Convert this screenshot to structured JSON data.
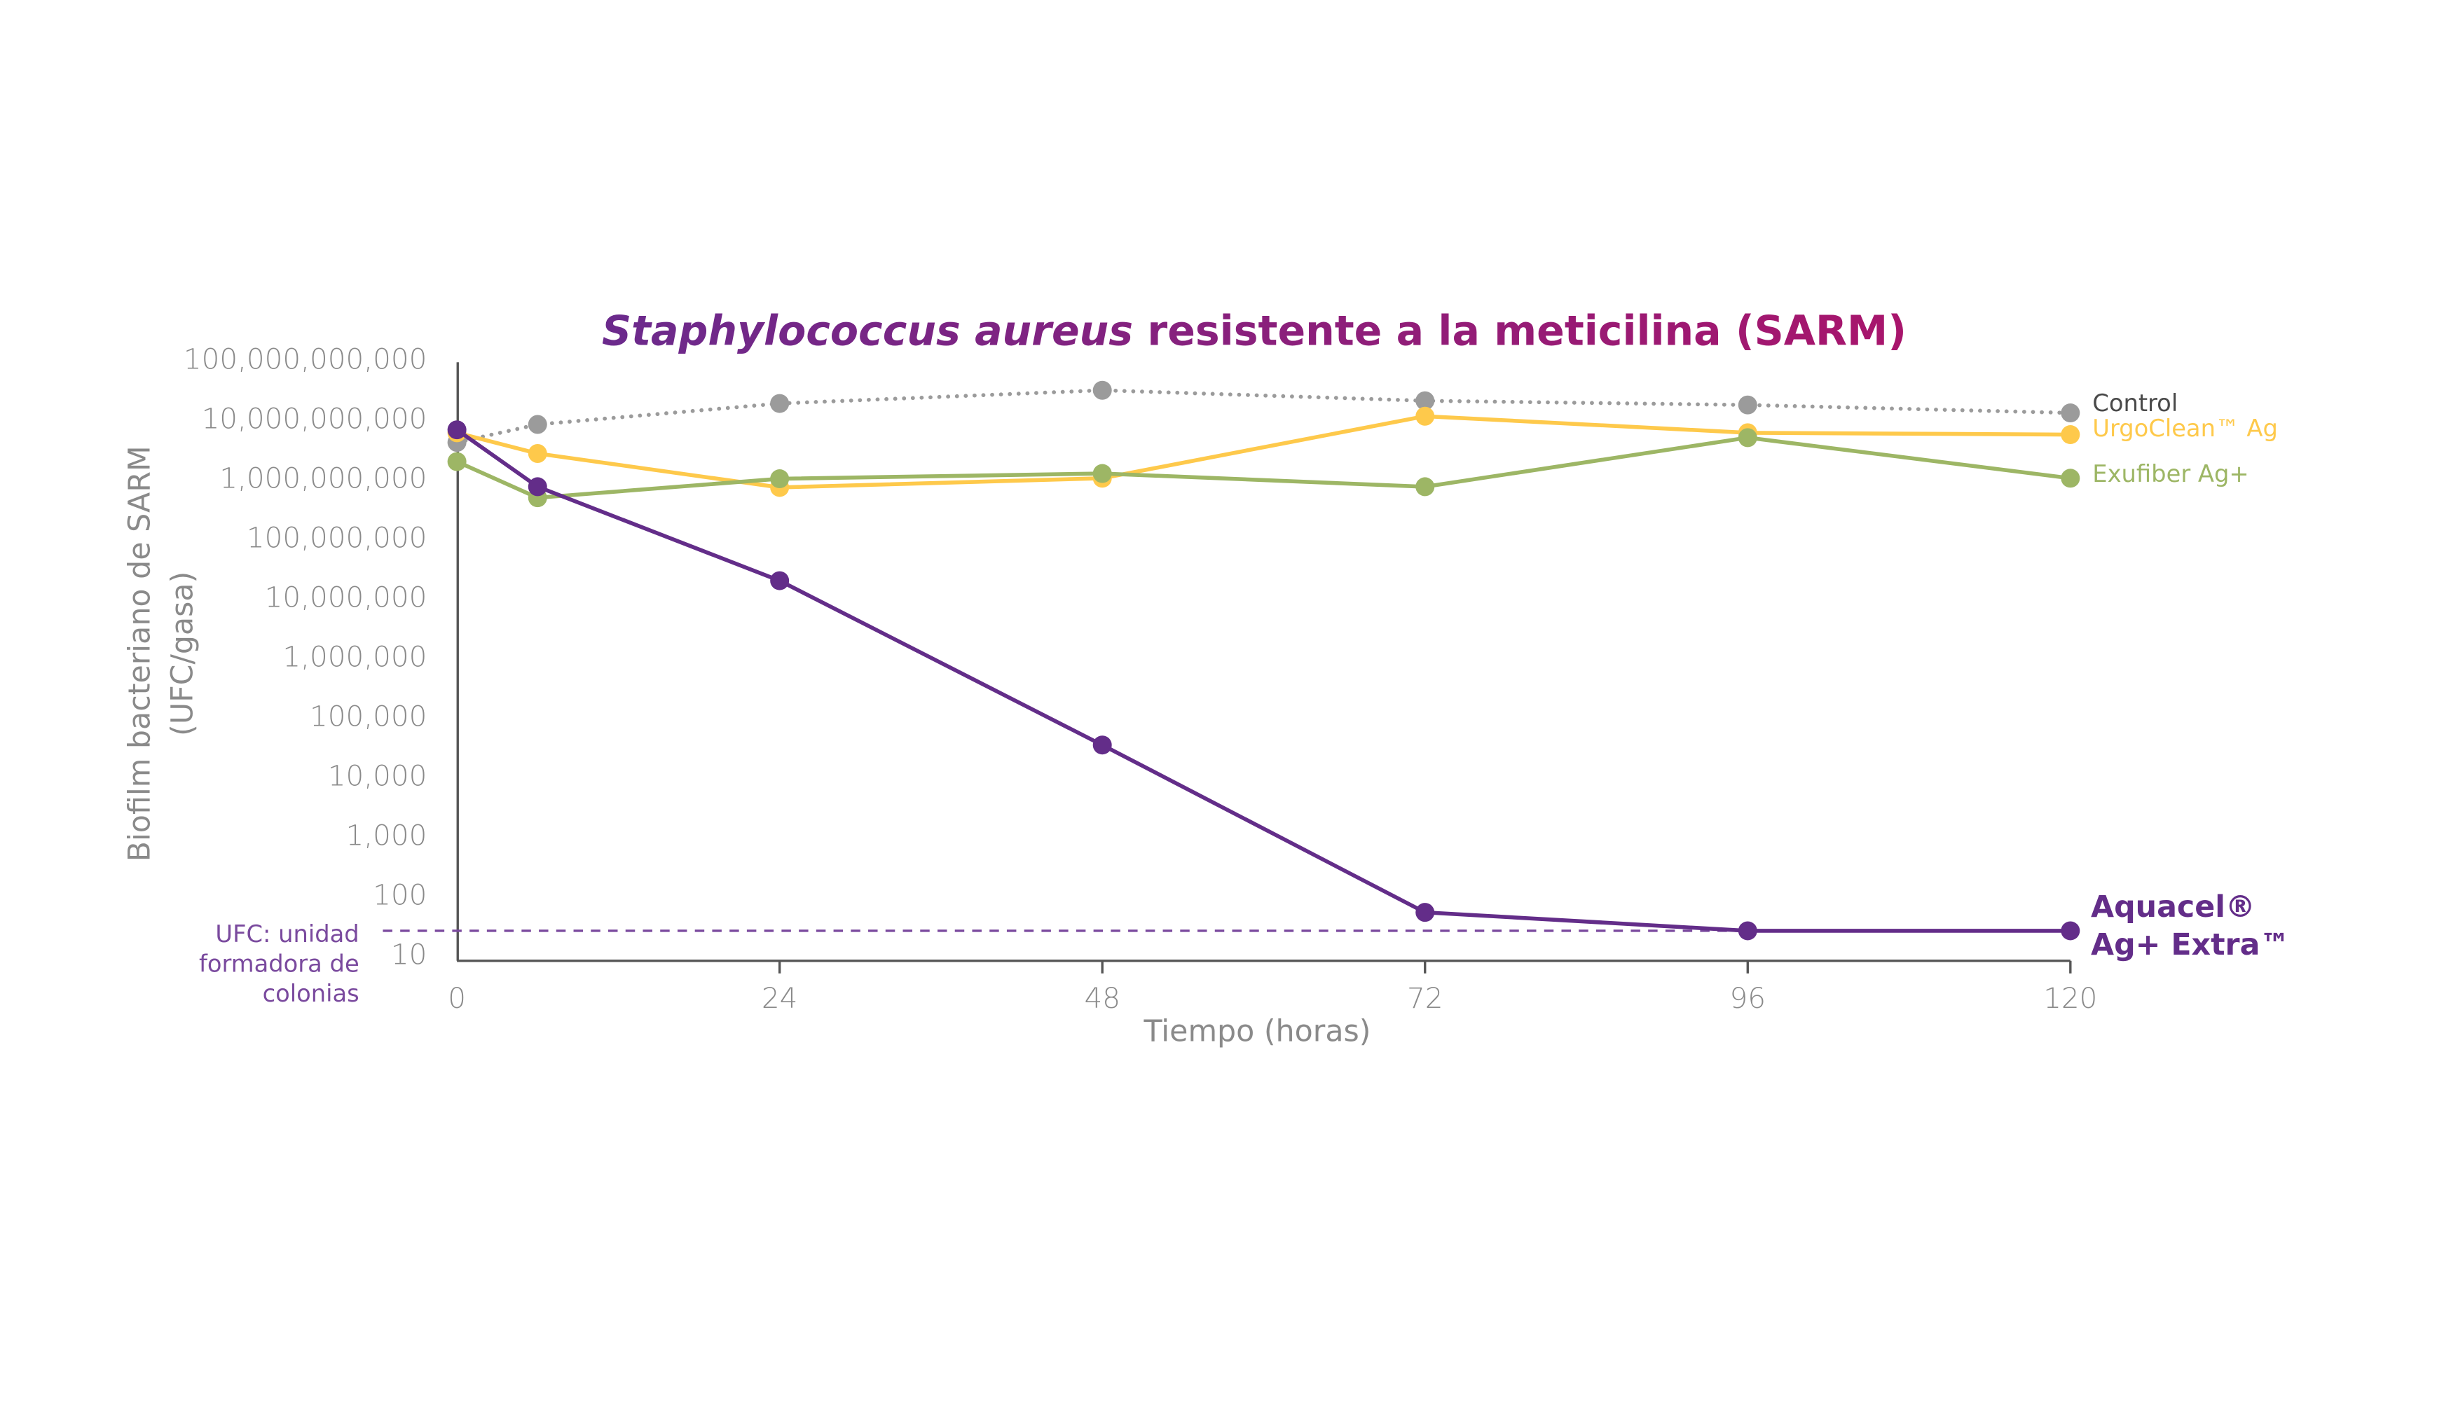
{
  "chart_data": {
    "type": "line",
    "title_italic": "Staphylococcus aureus",
    "title_rest": " resistente a la meticilina (SARM)",
    "xlabel": "Tiempo (horas)",
    "ylabel_line1": "Biofilm bacteriano de SARM",
    "ylabel_line2": "(UFC/gasa)",
    "yscale": "log",
    "ylim": [
      10,
      100000000000
    ],
    "xlim": [
      0,
      120
    ],
    "x_ticks": [
      "0",
      "24",
      "48",
      "72",
      "96",
      "120"
    ],
    "y_ticks": [
      "100,000,000,000",
      "10,000,000,000",
      "1,000,000,000",
      "100,000,000",
      "10,000,000",
      "1,000,000",
      "100,000",
      "10,000",
      "1,000",
      "100",
      "10"
    ],
    "grid": false,
    "x": [
      0,
      6,
      24,
      48,
      72,
      96,
      120
    ],
    "series": [
      {
        "name": "Control",
        "color": "#9b9b9b",
        "label_color": "#4a4a4a",
        "style": "dotted",
        "values": [
          4000000000,
          8000000000,
          18000000000,
          30000000000,
          20000000000,
          17000000000,
          12500000000
        ]
      },
      {
        "name": "UrgoClean™ Ag",
        "color": "#fec94b",
        "label_color": "#fec94b",
        "style": "solid",
        "values": [
          5800000000,
          2600000000,
          700000000,
          1000000000,
          11000000000,
          5800000000,
          5400000000
        ]
      },
      {
        "name": "Exufiber Ag+",
        "color": "#9db665",
        "label_color": "#9db665",
        "style": "solid",
        "values": [
          1900000000,
          470000000,
          980000000,
          1200000000,
          720000000,
          4800000000,
          1000000000
        ]
      },
      {
        "name_line1": "Aquacel®",
        "name_line2": "Ag+ Extra™",
        "color": "#632d89",
        "label_color": "#632d89",
        "style": "solid",
        "values": [
          6500000000,
          720000000,
          19000000,
          33000,
          51,
          25,
          25
        ]
      }
    ],
    "detection_limit": {
      "value": 25,
      "color": "#7a4a9e",
      "note_lines": [
        "UFC: unidad",
        "formadora de",
        "colonias"
      ]
    }
  }
}
